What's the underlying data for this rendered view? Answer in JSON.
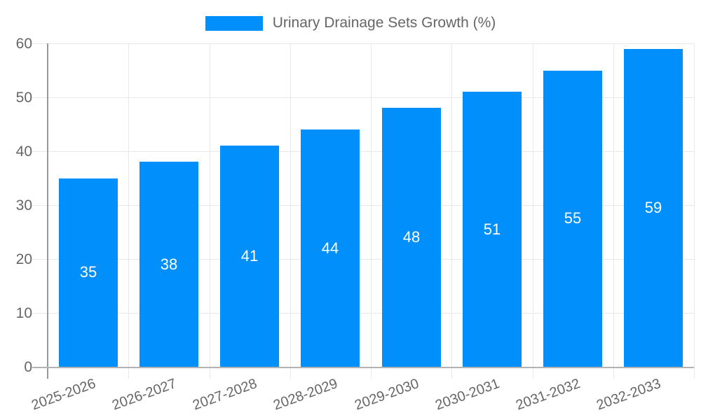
{
  "chart_data": {
    "type": "bar",
    "title": "Urinary Drainage Sets Growth (%)",
    "categories": [
      "2025-2026",
      "2026-2027",
      "2027-2028",
      "2028-2029",
      "2029-2030",
      "2030-2031",
      "2031-2032",
      "2032-2033"
    ],
    "series": [
      {
        "name": "Urinary Drainage Sets Growth (%)",
        "values": [
          35,
          38,
          41,
          44,
          48,
          51,
          55,
          59
        ]
      }
    ],
    "data_labels": [
      "35",
      "38",
      "41",
      "44",
      "48",
      "51",
      "55",
      "59"
    ],
    "xlabel": "",
    "ylabel": "",
    "ylim": [
      0,
      60
    ],
    "yticks": [
      0,
      10,
      20,
      30,
      40,
      50,
      60
    ],
    "ytick_labels": [
      "0",
      "10",
      "20",
      "30",
      "40",
      "50",
      "60"
    ],
    "grid": "on",
    "legend": {
      "position": "top",
      "label": "Urinary Drainage Sets Growth (%)"
    },
    "colors": {
      "bar": "#008FFB",
      "grid": "#e8e8e8",
      "axis_y": "#999999",
      "axis_x": "#b3b3b3",
      "tick_text": "#666666",
      "data_label_text": "#ffffff",
      "legend_text": "#666666",
      "background": "#ffffff"
    }
  }
}
